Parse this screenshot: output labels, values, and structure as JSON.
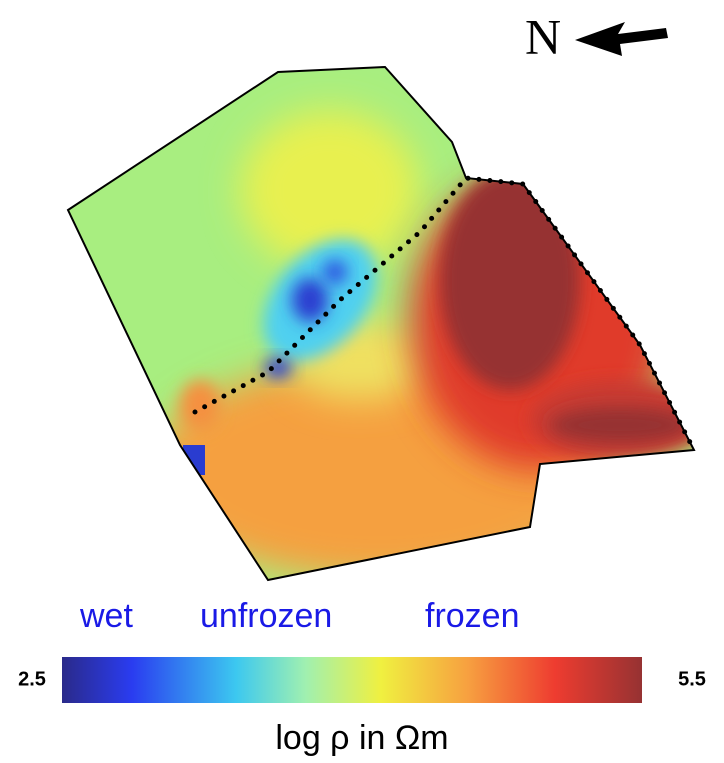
{
  "north_label": "N",
  "classes": [
    "wet",
    "unfrozen",
    "frozen"
  ],
  "colorbar": {
    "min": 2.5,
    "max": 5.5,
    "label": "log ρ in Ωm"
  }
}
